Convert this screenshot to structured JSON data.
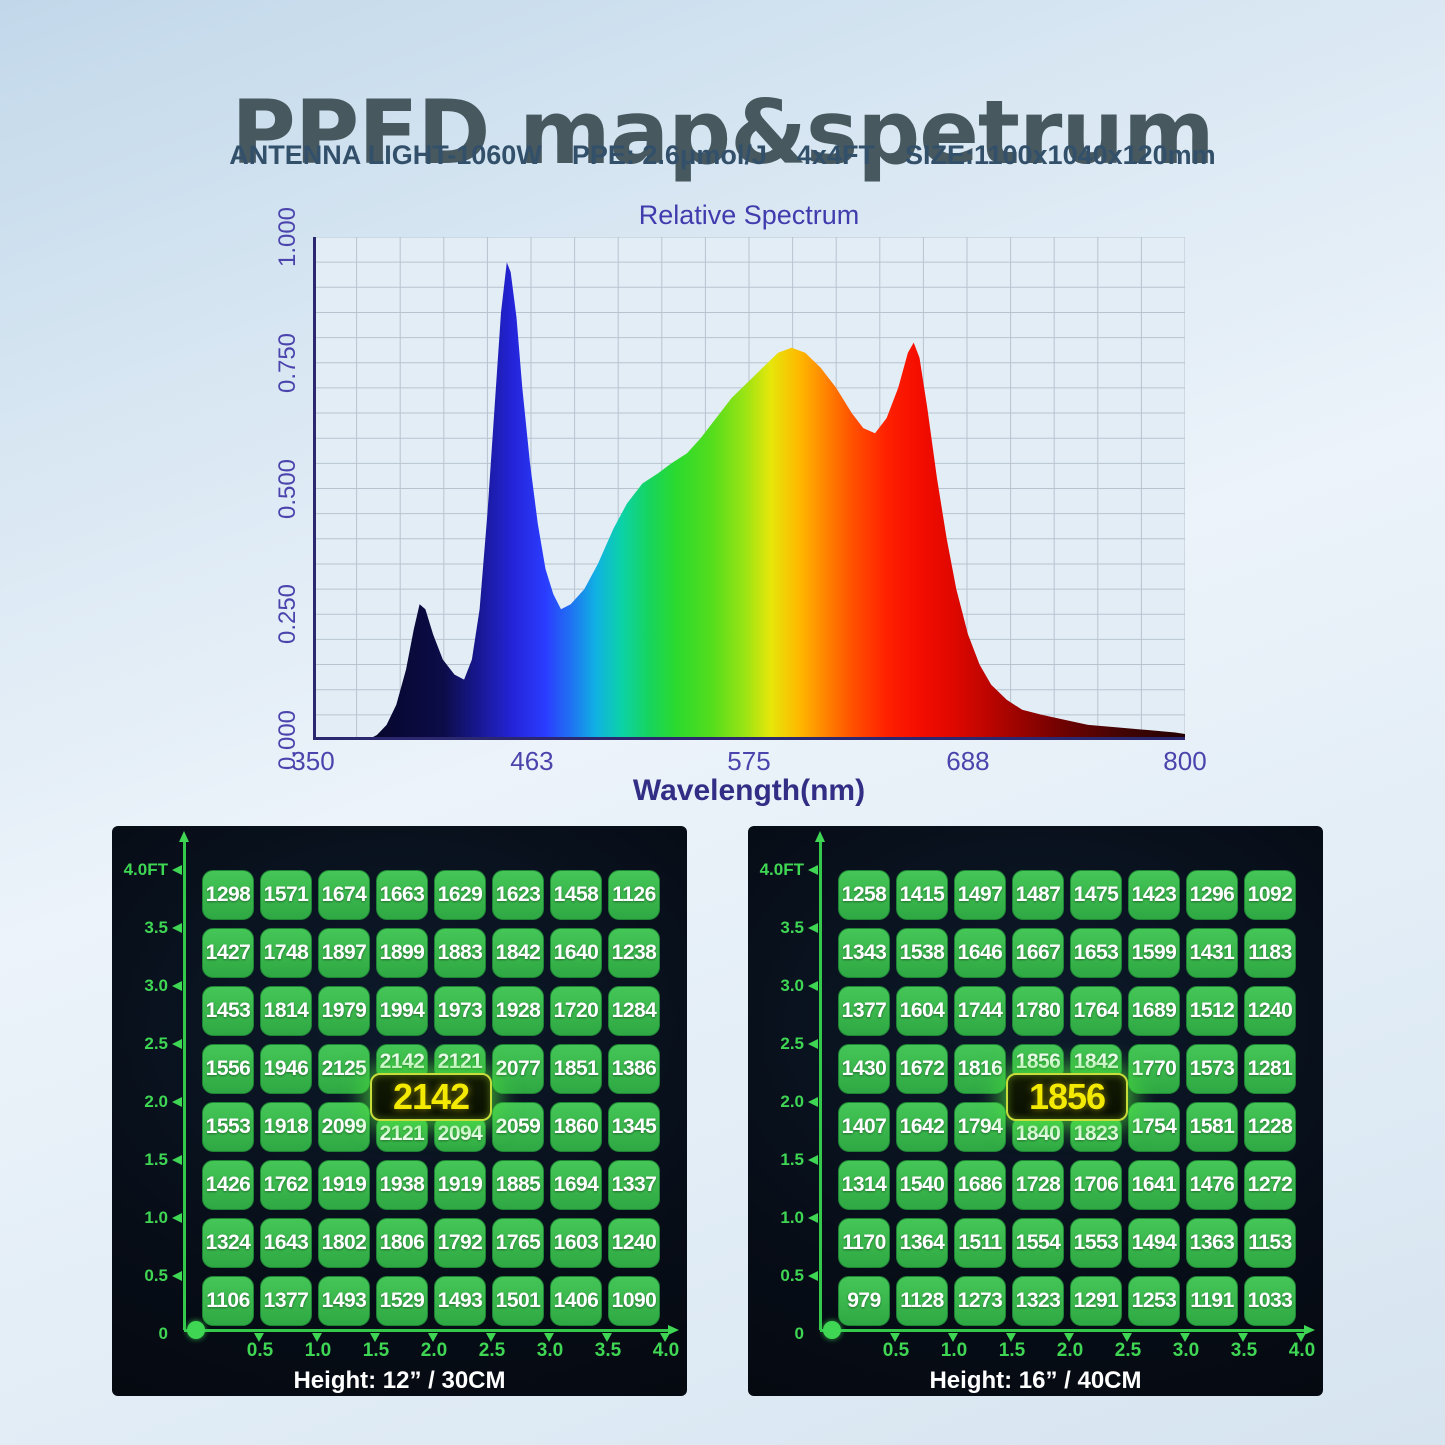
{
  "header": {
    "title": "PPFD map&spetrum",
    "subtitle_parts": [
      "ANTENNA LIGHT-1060W",
      "PPE: 2.6μmol/J",
      "4x4FT",
      "SIZE:1100x1040x120mm"
    ]
  },
  "colors": {
    "accent_green": "#3fd654",
    "cell_green": "#38b94c",
    "badge_yellow": "#f4e900",
    "title_text": "#47585f",
    "subtitle_text": "#33506b",
    "chart_purple": "#4b44ad",
    "axis_navy": "#2b2870",
    "panel_bg": "#070d17"
  },
  "chart_data": {
    "type": "area",
    "title": "Relative Spectrum",
    "xlabel": "Wavelength(nm)",
    "ylabel": "",
    "xlim": [
      350,
      800
    ],
    "ylim": [
      0,
      1
    ],
    "grid": true,
    "grid_divisions": 20,
    "x_ticks": [
      350,
      463,
      575,
      688,
      800
    ],
    "y_ticks": [
      "1.000",
      "0.750",
      "0.500",
      "0.250",
      "0.000"
    ],
    "series": [
      {
        "name": "relative-spectrum",
        "x": [
          378,
          383,
          388,
          393,
          398,
          402,
          405,
          408,
          412,
          417,
          423,
          428,
          432,
          436,
          440,
          444,
          447,
          450,
          452,
          455,
          458,
          462,
          466,
          470,
          474,
          478,
          483,
          490,
          497,
          505,
          512,
          520,
          528,
          535,
          543,
          550,
          558,
          566,
          574,
          582,
          590,
          597,
          604,
          612,
          620,
          628,
          634,
          640,
          646,
          652,
          657,
          660,
          663,
          667,
          672,
          677,
          682,
          688,
          694,
          700,
          708,
          716,
          726,
          738,
          750,
          765,
          780,
          795,
          800
        ],
        "y": [
          0,
          0.01,
          0.03,
          0.07,
          0.14,
          0.22,
          0.27,
          0.26,
          0.21,
          0.16,
          0.13,
          0.12,
          0.16,
          0.26,
          0.45,
          0.68,
          0.85,
          0.95,
          0.93,
          0.84,
          0.7,
          0.55,
          0.43,
          0.34,
          0.29,
          0.26,
          0.27,
          0.3,
          0.35,
          0.42,
          0.47,
          0.51,
          0.53,
          0.55,
          0.57,
          0.6,
          0.64,
          0.68,
          0.71,
          0.74,
          0.77,
          0.78,
          0.77,
          0.74,
          0.7,
          0.65,
          0.62,
          0.61,
          0.64,
          0.7,
          0.77,
          0.79,
          0.76,
          0.66,
          0.52,
          0.4,
          0.3,
          0.21,
          0.15,
          0.11,
          0.08,
          0.06,
          0.05,
          0.04,
          0.03,
          0.025,
          0.02,
          0.015,
          0.012
        ]
      }
    ],
    "gradient_stops": [
      [
        350,
        "#06062a"
      ],
      [
        392,
        "#0c0c48"
      ],
      [
        410,
        "#17178e"
      ],
      [
        430,
        "#2424d8"
      ],
      [
        448,
        "#2b3cff"
      ],
      [
        462,
        "#1f72f2"
      ],
      [
        476,
        "#10b2e2"
      ],
      [
        490,
        "#0cd2a8"
      ],
      [
        505,
        "#16d45e"
      ],
      [
        520,
        "#2bda2e"
      ],
      [
        540,
        "#55dd1c"
      ],
      [
        558,
        "#9be414"
      ],
      [
        572,
        "#e6e60a"
      ],
      [
        588,
        "#ffb800"
      ],
      [
        602,
        "#ff8400"
      ],
      [
        618,
        "#ff4e00"
      ],
      [
        636,
        "#ff2000"
      ],
      [
        655,
        "#f30c00"
      ],
      [
        672,
        "#e00800"
      ],
      [
        690,
        "#c00500"
      ],
      [
        710,
        "#980300"
      ],
      [
        735,
        "#6b0202"
      ],
      [
        765,
        "#420404"
      ],
      [
        800,
        "#230202"
      ]
    ]
  },
  "maps": {
    "left": {
      "height_label": "Height: 12” / 30CM",
      "center_badge": "2142",
      "y_labels": [
        "4.0FT",
        "3.5",
        "3.0",
        "2.5",
        "2.0",
        "1.5",
        "1.0",
        "0.5",
        "0"
      ],
      "x_labels": [
        "0.5",
        "1.0",
        "1.5",
        "2.0",
        "2.5",
        "3.0",
        "3.5",
        "4.0"
      ],
      "values": [
        [
          1298,
          1571,
          1674,
          1663,
          1629,
          1623,
          1458,
          1126
        ],
        [
          1427,
          1748,
          1897,
          1899,
          1883,
          1842,
          1640,
          1238
        ],
        [
          1453,
          1814,
          1979,
          1994,
          1973,
          1928,
          1720,
          1284
        ],
        [
          1556,
          1946,
          2125,
          2142,
          2121,
          2077,
          1851,
          1386
        ],
        [
          1553,
          1918,
          2099,
          2121,
          2094,
          2059,
          1860,
          1345
        ],
        [
          1426,
          1762,
          1919,
          1938,
          1919,
          1885,
          1694,
          1337
        ],
        [
          1324,
          1643,
          1802,
          1806,
          1792,
          1765,
          1603,
          1240
        ],
        [
          1106,
          1377,
          1493,
          1529,
          1493,
          1501,
          1406,
          1090
        ]
      ]
    },
    "right": {
      "height_label": "Height: 16” / 40CM",
      "center_badge": "1856",
      "y_labels": [
        "4.0FT",
        "3.5",
        "3.0",
        "2.5",
        "2.0",
        "1.5",
        "1.0",
        "0.5",
        "0"
      ],
      "x_labels": [
        "0.5",
        "1.0",
        "1.5",
        "2.0",
        "2.5",
        "3.0",
        "3.5",
        "4.0"
      ],
      "values": [
        [
          1258,
          1415,
          1497,
          1487,
          1475,
          1423,
          1296,
          1092
        ],
        [
          1343,
          1538,
          1646,
          1667,
          1653,
          1599,
          1431,
          1183
        ],
        [
          1377,
          1604,
          1744,
          1780,
          1764,
          1689,
          1512,
          1240
        ],
        [
          1430,
          1672,
          1816,
          1856,
          1842,
          1770,
          1573,
          1281
        ],
        [
          1407,
          1642,
          1794,
          1840,
          1823,
          1754,
          1581,
          1228
        ],
        [
          1314,
          1540,
          1686,
          1728,
          1706,
          1641,
          1476,
          1272
        ],
        [
          1170,
          1364,
          1511,
          1554,
          1553,
          1494,
          1363,
          1153
        ],
        [
          979,
          1128,
          1273,
          1323,
          1291,
          1253,
          1191,
          1033
        ]
      ]
    }
  }
}
